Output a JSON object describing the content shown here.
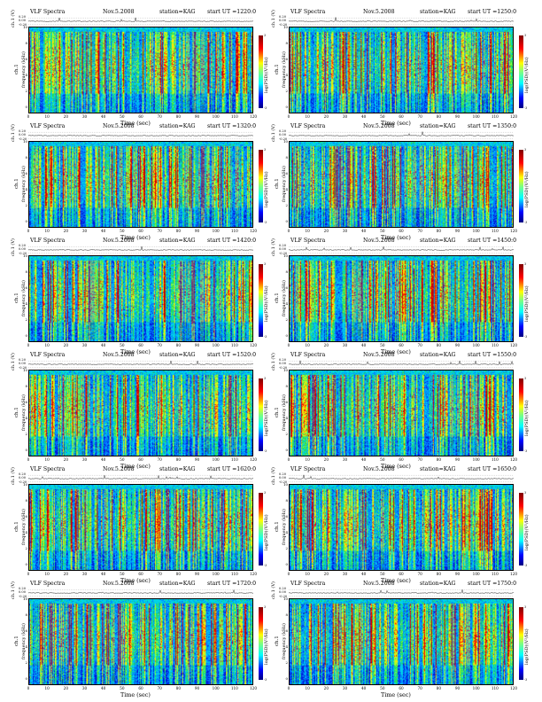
{
  "chart_data": [
    {
      "type": "heatmap",
      "title": "VLF Spectra",
      "date": "Nov.5.2008",
      "station": "station=KAG",
      "start": "start  UT =1220:0",
      "wave_ylabel": "ch.1 (V)",
      "wave_ticks": [
        "0.20",
        "0.00",
        "-0.20"
      ],
      "spec_ylabel": "ch.1",
      "spec_ylabel2": "frequency (kHz)",
      "yticks": [
        "10",
        "8",
        "6",
        "4",
        "2",
        "0"
      ],
      "xlabel": "Time (sec)",
      "xticks": [
        "0",
        "10",
        "20",
        "30",
        "40",
        "50",
        "60",
        "70",
        "80",
        "90",
        "100",
        "110",
        "120"
      ],
      "xlim": [
        0,
        120
      ],
      "ylim": [
        0,
        10
      ],
      "colorbar_label": "log(PSD)(V²/Hz)",
      "colorbar_ticks": [
        "3",
        "-3"
      ]
    },
    {
      "type": "heatmap",
      "title": "VLF Spectra",
      "date": "Nov.5.2008",
      "station": "station=KAG",
      "start": "start  UT =1250:0",
      "wave_ylabel": "ch.1 (V)",
      "wave_ticks": [
        "0.20",
        "0.00",
        "-0.20"
      ],
      "spec_ylabel": "ch.1",
      "spec_ylabel2": "frequency (kHz)",
      "yticks": [
        "10",
        "8",
        "6",
        "4",
        "2",
        "0"
      ],
      "xlabel": "Time (sec)",
      "xticks": [
        "0",
        "10",
        "20",
        "30",
        "40",
        "50",
        "60",
        "70",
        "80",
        "90",
        "100",
        "110",
        "120"
      ],
      "xlim": [
        0,
        120
      ],
      "ylim": [
        0,
        10
      ],
      "colorbar_label": "log(PSD)(V²/Hz)",
      "colorbar_ticks": [
        "3",
        "-3"
      ]
    },
    {
      "type": "heatmap",
      "title": "VLF Spectra",
      "date": "Nov.5.2008",
      "station": "station=KAG",
      "start": "start  UT =1320:0",
      "wave_ylabel": "ch.1 (V)",
      "wave_ticks": [
        "0.20",
        "0.00",
        "-0.20"
      ],
      "spec_ylabel": "ch.1",
      "spec_ylabel2": "frequency (kHz)",
      "yticks": [
        "10",
        "8",
        "6",
        "4",
        "2",
        "0"
      ],
      "xlabel": "Time (sec)",
      "xticks": [
        "0",
        "10",
        "20",
        "30",
        "40",
        "50",
        "60",
        "70",
        "80",
        "90",
        "100",
        "110",
        "120"
      ],
      "xlim": [
        0,
        120
      ],
      "ylim": [
        0,
        10
      ],
      "colorbar_label": "log(PSD)(V²/Hz)",
      "colorbar_ticks": [
        "3",
        "-3"
      ]
    },
    {
      "type": "heatmap",
      "title": "VLF Spectra",
      "date": "Nov.5.2008",
      "station": "station=KAG",
      "start": "start  UT =1350:0",
      "wave_ylabel": "ch.1 (V)",
      "wave_ticks": [
        "0.20",
        "0.00",
        "-0.20"
      ],
      "spec_ylabel": "ch.1",
      "spec_ylabel2": "frequency (kHz)",
      "yticks": [
        "10",
        "8",
        "6",
        "4",
        "2",
        "0"
      ],
      "xlabel": "Time (sec)",
      "xticks": [
        "0",
        "10",
        "20",
        "30",
        "40",
        "50",
        "60",
        "70",
        "80",
        "90",
        "100",
        "110",
        "120"
      ],
      "xlim": [
        0,
        120
      ],
      "ylim": [
        0,
        10
      ],
      "colorbar_label": "log(PSD)(V²/Hz)",
      "colorbar_ticks": [
        "3",
        "-3"
      ]
    },
    {
      "type": "heatmap",
      "title": "VLF Spectra",
      "date": "Nov.5.2008",
      "station": "station=KAG",
      "start": "start  UT =1420:0",
      "wave_ylabel": "ch.1 (V)",
      "wave_ticks": [
        "0.20",
        "0.00",
        "-0.20"
      ],
      "spec_ylabel": "ch.1",
      "spec_ylabel2": "frequency (kHz)",
      "yticks": [
        "10",
        "8",
        "6",
        "4",
        "2",
        "0"
      ],
      "xlabel": "Time (sec)",
      "xticks": [
        "0",
        "10",
        "20",
        "30",
        "40",
        "50",
        "60",
        "70",
        "80",
        "90",
        "100",
        "110",
        "120"
      ],
      "xlim": [
        0,
        120
      ],
      "ylim": [
        0,
        10
      ],
      "colorbar_label": "log(PSD)(V²/Hz)",
      "colorbar_ticks": [
        "3",
        "-3"
      ]
    },
    {
      "type": "heatmap",
      "title": "VLF Spectra",
      "date": "Nov.5.2008",
      "station": "station=KAG",
      "start": "start  UT =1450:0",
      "wave_ylabel": "ch.1 (V)",
      "wave_ticks": [
        "0.20",
        "0.00",
        "-0.20"
      ],
      "spec_ylabel": "ch.1",
      "spec_ylabel2": "frequency (kHz)",
      "yticks": [
        "10",
        "8",
        "6",
        "4",
        "2",
        "0"
      ],
      "xlabel": "Time (sec)",
      "xticks": [
        "0",
        "10",
        "20",
        "30",
        "40",
        "50",
        "60",
        "70",
        "80",
        "90",
        "100",
        "110",
        "120"
      ],
      "xlim": [
        0,
        120
      ],
      "ylim": [
        0,
        10
      ],
      "colorbar_label": "log(PSD)(V²/Hz)",
      "colorbar_ticks": [
        "3",
        "-3"
      ]
    },
    {
      "type": "heatmap",
      "title": "VLF Spectra",
      "date": "Nov.5.2008",
      "station": "station=KAG",
      "start": "start  UT =1520:0",
      "wave_ylabel": "ch.1 (V)",
      "wave_ticks": [
        "0.20",
        "0.00",
        "-0.20"
      ],
      "spec_ylabel": "ch.1",
      "spec_ylabel2": "frequency (kHz)",
      "yticks": [
        "10",
        "8",
        "6",
        "4",
        "2",
        "0"
      ],
      "xlabel": "Time (sec)",
      "xticks": [
        "0",
        "10",
        "20",
        "30",
        "40",
        "50",
        "60",
        "70",
        "80",
        "90",
        "100",
        "110",
        "120"
      ],
      "xlim": [
        0,
        120
      ],
      "ylim": [
        0,
        10
      ],
      "colorbar_label": "log(PSD)(V²/Hz)",
      "colorbar_ticks": [
        "3",
        "-3"
      ]
    },
    {
      "type": "heatmap",
      "title": "VLF Spectra",
      "date": "Nov.5.2008",
      "station": "station=KAG",
      "start": "start  UT =1550:0",
      "wave_ylabel": "ch.1 (V)",
      "wave_ticks": [
        "0.20",
        "0.00",
        "-0.20"
      ],
      "spec_ylabel": "ch.1",
      "spec_ylabel2": "frequency (kHz)",
      "yticks": [
        "10",
        "8",
        "6",
        "4",
        "2",
        "0"
      ],
      "xlabel": "Time (sec)",
      "xticks": [
        "0",
        "10",
        "20",
        "30",
        "40",
        "50",
        "60",
        "70",
        "80",
        "90",
        "100",
        "110",
        "120"
      ],
      "xlim": [
        0,
        120
      ],
      "ylim": [
        0,
        10
      ],
      "colorbar_label": "log(PSD)(V²/Hz)",
      "colorbar_ticks": [
        "3",
        "-3"
      ]
    },
    {
      "type": "heatmap",
      "title": "VLF Spectra",
      "date": "Nov.5.2008",
      "station": "station=KAG",
      "start": "start  UT =1620:0",
      "wave_ylabel": "ch.1 (V)",
      "wave_ticks": [
        "0.20",
        "0.00",
        "-0.20"
      ],
      "spec_ylabel": "ch.1",
      "spec_ylabel2": "frequency (kHz)",
      "yticks": [
        "10",
        "8",
        "6",
        "4",
        "2",
        "0"
      ],
      "xlabel": "Time (sec)",
      "xticks": [
        "0",
        "10",
        "20",
        "30",
        "40",
        "50",
        "60",
        "70",
        "80",
        "90",
        "100",
        "110",
        "120"
      ],
      "xlim": [
        0,
        120
      ],
      "ylim": [
        0,
        10
      ],
      "colorbar_label": "log(PSD)(V²/Hz)",
      "colorbar_ticks": [
        "3",
        "-3"
      ]
    },
    {
      "type": "heatmap",
      "title": "VLF Spectra",
      "date": "Nov.5.2008",
      "station": "station=KAG",
      "start": "start  UT =1650:0",
      "wave_ylabel": "ch.1 (V)",
      "wave_ticks": [
        "0.20",
        "0.00",
        "-0.20"
      ],
      "spec_ylabel": "ch.1",
      "spec_ylabel2": "frequency (kHz)",
      "yticks": [
        "10",
        "8",
        "6",
        "4",
        "2",
        "0"
      ],
      "xlabel": "Time (sec)",
      "xticks": [
        "0",
        "10",
        "20",
        "30",
        "40",
        "50",
        "60",
        "70",
        "80",
        "90",
        "100",
        "110",
        "120"
      ],
      "xlim": [
        0,
        120
      ],
      "ylim": [
        0,
        10
      ],
      "colorbar_label": "log(PSD)(V²/Hz)",
      "colorbar_ticks": [
        "3",
        "-3"
      ]
    },
    {
      "type": "heatmap",
      "title": "VLF Spectra",
      "date": "Nov.5.2008",
      "station": "station=KAG",
      "start": "start  UT =1720:0",
      "wave_ylabel": "ch.1 (V)",
      "wave_ticks": [
        "0.20",
        "0.00",
        "-0.20"
      ],
      "spec_ylabel": "ch.1",
      "spec_ylabel2": "frequency (kHz)",
      "yticks": [
        "10",
        "8",
        "6",
        "4",
        "2",
        "0"
      ],
      "xlabel": "Time (sec)",
      "xticks": [
        "0",
        "10",
        "20",
        "30",
        "40",
        "50",
        "60",
        "70",
        "80",
        "90",
        "100",
        "110",
        "120"
      ],
      "xlim": [
        0,
        120
      ],
      "ylim": [
        0,
        10
      ],
      "colorbar_label": "log(PSD)(V²/Hz)",
      "colorbar_ticks": [
        "3",
        "-3"
      ]
    },
    {
      "type": "heatmap",
      "title": "VLF Spectra",
      "date": "Nov.5.2008",
      "station": "station=KAG",
      "start": "start  UT =1750:0",
      "wave_ylabel": "ch.1 (V)",
      "wave_ticks": [
        "0.20",
        "0.00",
        "-0.20"
      ],
      "spec_ylabel": "ch.1",
      "spec_ylabel2": "frequency (kHz)",
      "yticks": [
        "10",
        "8",
        "6",
        "4",
        "2",
        "0"
      ],
      "xlabel": "Time (sec)",
      "xticks": [
        "0",
        "10",
        "20",
        "30",
        "40",
        "50",
        "60",
        "70",
        "80",
        "90",
        "100",
        "110",
        "120"
      ],
      "xlim": [
        0,
        120
      ],
      "ylim": [
        0,
        10
      ],
      "colorbar_label": "log(PSD)(V²/Hz)",
      "colorbar_ticks": [
        "3",
        "-3"
      ]
    }
  ]
}
